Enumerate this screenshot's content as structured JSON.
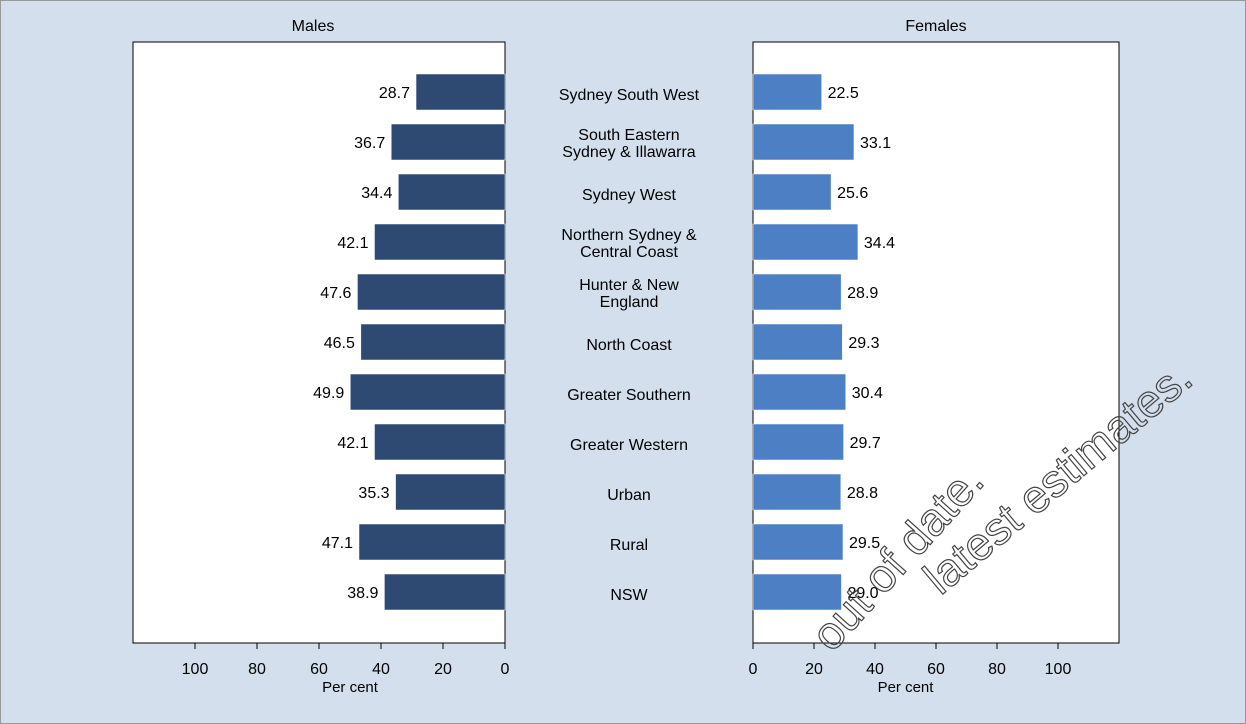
{
  "chart_data": {
    "type": "butterfly",
    "categories": [
      "Sydney South West",
      "South Eastern\nSydney & Illawarra",
      "Sydney West",
      "Northern Sydney &\nCentral Coast",
      "Hunter & New\nEngland",
      "North Coast",
      "Greater Southern",
      "Greater Western",
      "Urban",
      "Rural",
      "NSW"
    ],
    "series": [
      {
        "name": "Males",
        "color": "#2e4a72",
        "values": [
          28.7,
          36.7,
          34.4,
          42.1,
          47.6,
          46.5,
          49.9,
          42.1,
          35.3,
          47.1,
          38.9
        ],
        "value_labels": [
          "28.7",
          "36.7",
          "34.4",
          "42.1",
          "47.6",
          "46.5",
          "49.9",
          "42.1",
          "35.3",
          "47.1",
          "38.9"
        ]
      },
      {
        "name": "Females",
        "color": "#4d7fc4",
        "values": [
          22.5,
          33.1,
          25.6,
          34.4,
          28.9,
          29.3,
          30.4,
          29.7,
          28.8,
          29.5,
          29.0
        ],
        "value_labels": [
          "22.5",
          "33.1",
          "25.6",
          "34.4",
          "28.9",
          "29.3",
          "30.4",
          "29.7",
          "28.8",
          "29.5",
          "29.0"
        ]
      }
    ],
    "xlim": [
      0,
      120
    ],
    "xticks": [
      0,
      20,
      40,
      60,
      80,
      100
    ],
    "xlabel": "Per cent",
    "watermark": [
      "out of date.",
      "latest estimates."
    ]
  }
}
